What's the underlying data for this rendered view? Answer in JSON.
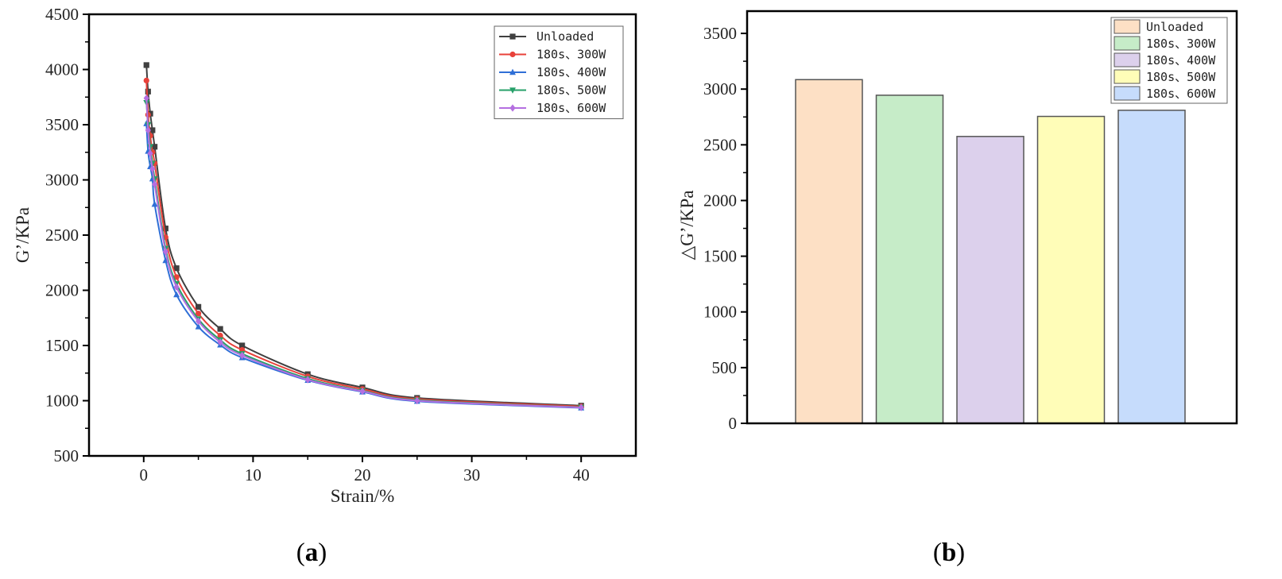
{
  "panels": [
    {
      "label_open": "(",
      "label_letter": "a",
      "label_close": ")"
    },
    {
      "label_open": "(",
      "label_letter": "b",
      "label_close": ")"
    }
  ],
  "colors": {
    "unloaded": "#404040",
    "s300": "#e8413a",
    "s400": "#2f6fd6",
    "s500": "#27a06a",
    "s600": "#b46fe0",
    "bar_fill": [
      "#fde0c5",
      "#c6ecc8",
      "#dcd0ec",
      "#fffdb8",
      "#c6dcfc"
    ]
  },
  "chart_data": [
    {
      "type": "line",
      "xlabel": "Strain/%",
      "ylabel": "G’/KPa",
      "xlim": [
        -5,
        45
      ],
      "ylim": [
        500,
        4500
      ],
      "xticks": [
        0,
        10,
        20,
        30,
        40
      ],
      "yticks": [
        500,
        1000,
        1500,
        2000,
        2500,
        3000,
        3500,
        4000,
        4500
      ],
      "legend_position": "top-right",
      "series": [
        {
          "name": "Unloaded",
          "marker": "square",
          "color_key": "unloaded",
          "x": [
            0.25,
            0.4,
            0.6,
            0.8,
            1,
            2,
            3,
            5,
            7,
            9,
            15,
            20,
            25,
            40
          ],
          "y": [
            4040,
            3800,
            3600,
            3450,
            3300,
            2560,
            2200,
            1850,
            1650,
            1500,
            1240,
            1120,
            1025,
            955
          ]
        },
        {
          "name": "180s、300W",
          "marker": "circle",
          "color_key": "s300",
          "x": [
            0.25,
            0.4,
            0.6,
            0.8,
            1,
            2,
            3,
            5,
            7,
            9,
            15,
            20,
            25,
            40
          ],
          "y": [
            3900,
            3590,
            3400,
            3250,
            3150,
            2480,
            2120,
            1790,
            1590,
            1460,
            1220,
            1105,
            1015,
            948
          ]
        },
        {
          "name": "180s、400W",
          "marker": "triangle-up",
          "color_key": "s400",
          "x": [
            0.25,
            0.4,
            0.6,
            0.8,
            1,
            2,
            3,
            5,
            7,
            9,
            15,
            20,
            25,
            40
          ],
          "y": [
            3510,
            3260,
            3120,
            3010,
            2780,
            2270,
            1960,
            1670,
            1505,
            1390,
            1185,
            1080,
            995,
            935
          ]
        },
        {
          "name": "180s、500W",
          "marker": "triangle-down",
          "color_key": "s500",
          "x": [
            0.25,
            0.4,
            0.6,
            0.8,
            1,
            2,
            3,
            5,
            7,
            9,
            15,
            20,
            25,
            40
          ],
          "y": [
            3700,
            3500,
            3300,
            3150,
            3010,
            2380,
            2060,
            1740,
            1550,
            1425,
            1200,
            1090,
            1005,
            940
          ]
        },
        {
          "name": "180s、600W",
          "marker": "diamond",
          "color_key": "s600",
          "x": [
            0.25,
            0.4,
            0.6,
            0.8,
            1,
            2,
            3,
            5,
            7,
            9,
            15,
            20,
            25,
            40
          ],
          "y": [
            3740,
            3450,
            3240,
            3100,
            2960,
            2350,
            2030,
            1720,
            1530,
            1410,
            1190,
            1085,
            1000,
            938
          ]
        }
      ]
    },
    {
      "type": "bar",
      "xlabel": "",
      "ylabel": "△G’/KPa",
      "ylim": [
        0,
        3700
      ],
      "yticks": [
        0,
        500,
        1000,
        1500,
        2000,
        2500,
        3000,
        3500
      ],
      "legend_position": "top-right",
      "categories": [
        "Unloaded",
        "180s、300W",
        "180s、400W",
        "180s、500W",
        "180s、600W"
      ],
      "values": [
        3085,
        2945,
        2575,
        2755,
        2810
      ]
    }
  ]
}
